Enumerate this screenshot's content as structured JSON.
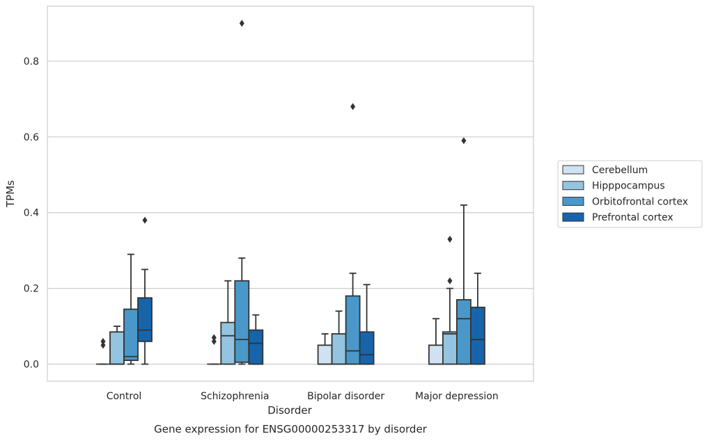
{
  "chart_data": {
    "type": "box",
    "title": "",
    "caption": "Gene expression for ENSG00000253317 by disorder",
    "xlabel": "Disorder",
    "ylabel": "TPMs",
    "ylim": [
      -0.045,
      0.945
    ],
    "yticks": [
      0.0,
      0.2,
      0.4,
      0.6,
      0.8
    ],
    "ytick_labels": [
      "0.0",
      "0.2",
      "0.4",
      "0.6",
      "0.8"
    ],
    "grid": "horizontal",
    "legend_position": "right",
    "categories": [
      "Control",
      "Schizophrenia",
      "Bipolar disorder",
      "Major depression"
    ],
    "series": [
      {
        "name": "Cerebellum",
        "color": "#d0e1f2",
        "boxes": [
          {
            "whislo": 0.0,
            "q1": 0.0,
            "med": 0.0,
            "q3": 0.0,
            "whishi": 0.0,
            "fliers": [
              0.05,
              0.06
            ]
          },
          {
            "whislo": 0.0,
            "q1": 0.0,
            "med": 0.0,
            "q3": 0.0,
            "whishi": 0.0,
            "fliers": [
              0.06,
              0.07
            ]
          },
          {
            "whislo": 0.0,
            "q1": 0.0,
            "med": 0.0,
            "q3": 0.05,
            "whishi": 0.08,
            "fliers": []
          },
          {
            "whislo": 0.0,
            "q1": 0.0,
            "med": 0.0,
            "q3": 0.05,
            "whishi": 0.12,
            "fliers": []
          }
        ]
      },
      {
        "name": "Hipppocampus",
        "color": "#94c4df",
        "boxes": [
          {
            "whislo": 0.0,
            "q1": 0.0,
            "med": 0.0,
            "q3": 0.085,
            "whishi": 0.1,
            "fliers": []
          },
          {
            "whislo": 0.0,
            "q1": 0.0,
            "med": 0.075,
            "q3": 0.11,
            "whishi": 0.22,
            "fliers": []
          },
          {
            "whislo": 0.0,
            "q1": 0.0,
            "med": 0.0,
            "q3": 0.08,
            "whishi": 0.14,
            "fliers": []
          },
          {
            "whislo": 0.0,
            "q1": 0.0,
            "med": 0.08,
            "q3": 0.085,
            "whishi": 0.2,
            "fliers": [
              0.22,
              0.33
            ]
          }
        ]
      },
      {
        "name": "Orbitofrontal cortex",
        "color": "#4a98c9",
        "boxes": [
          {
            "whislo": 0.0,
            "q1": 0.01,
            "med": 0.02,
            "q3": 0.145,
            "whishi": 0.29,
            "fliers": []
          },
          {
            "whislo": 0.0,
            "q1": 0.005,
            "med": 0.065,
            "q3": 0.22,
            "whishi": 0.28,
            "fliers": [
              0.9
            ]
          },
          {
            "whislo": 0.0,
            "q1": 0.0,
            "med": 0.035,
            "q3": 0.18,
            "whishi": 0.24,
            "fliers": [
              0.68
            ]
          },
          {
            "whislo": 0.0,
            "q1": 0.0,
            "med": 0.12,
            "q3": 0.17,
            "whishi": 0.42,
            "fliers": [
              0.59
            ]
          }
        ]
      },
      {
        "name": "Prefrontal cortex",
        "color": "#1764ab",
        "boxes": [
          {
            "whislo": 0.0,
            "q1": 0.06,
            "med": 0.09,
            "q3": 0.175,
            "whishi": 0.25,
            "fliers": [
              0.38
            ]
          },
          {
            "whislo": 0.0,
            "q1": 0.0,
            "med": 0.055,
            "q3": 0.09,
            "whishi": 0.13,
            "fliers": []
          },
          {
            "whislo": 0.0,
            "q1": 0.0,
            "med": 0.025,
            "q3": 0.085,
            "whishi": 0.21,
            "fliers": []
          },
          {
            "whislo": 0.0,
            "q1": 0.0,
            "med": 0.065,
            "q3": 0.15,
            "whishi": 0.24,
            "fliers": []
          }
        ]
      }
    ]
  },
  "colors": {
    "axes_edge": "#cccccc",
    "grid": "#cccccc",
    "box_line": "#333333",
    "text": "#262626"
  }
}
